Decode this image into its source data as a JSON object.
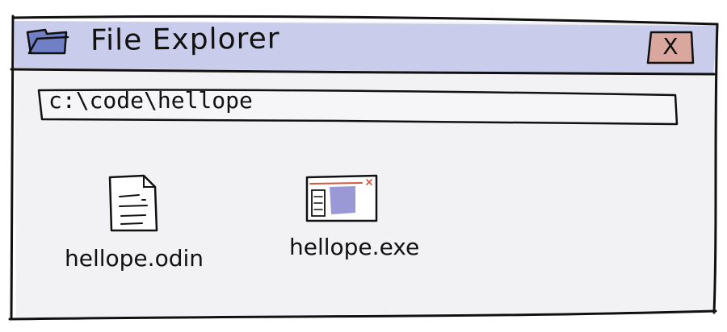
{
  "window": {
    "title": "File Explorer",
    "close_label": "X"
  },
  "address_bar": {
    "value": "c:\\code\\hellope"
  },
  "files": [
    {
      "name": "hellope.odin",
      "icon": "text-file-icon"
    },
    {
      "name": "hellope.exe",
      "icon": "window-app-icon"
    }
  ],
  "colors": {
    "titlebar": "#c9cdeb",
    "window_body": "#f2f2f4",
    "close_button": "#d9a79d",
    "app_icon_accent": "#9b98d6",
    "app_icon_titlebar_line": "#d2573f",
    "outline": "#111111"
  }
}
